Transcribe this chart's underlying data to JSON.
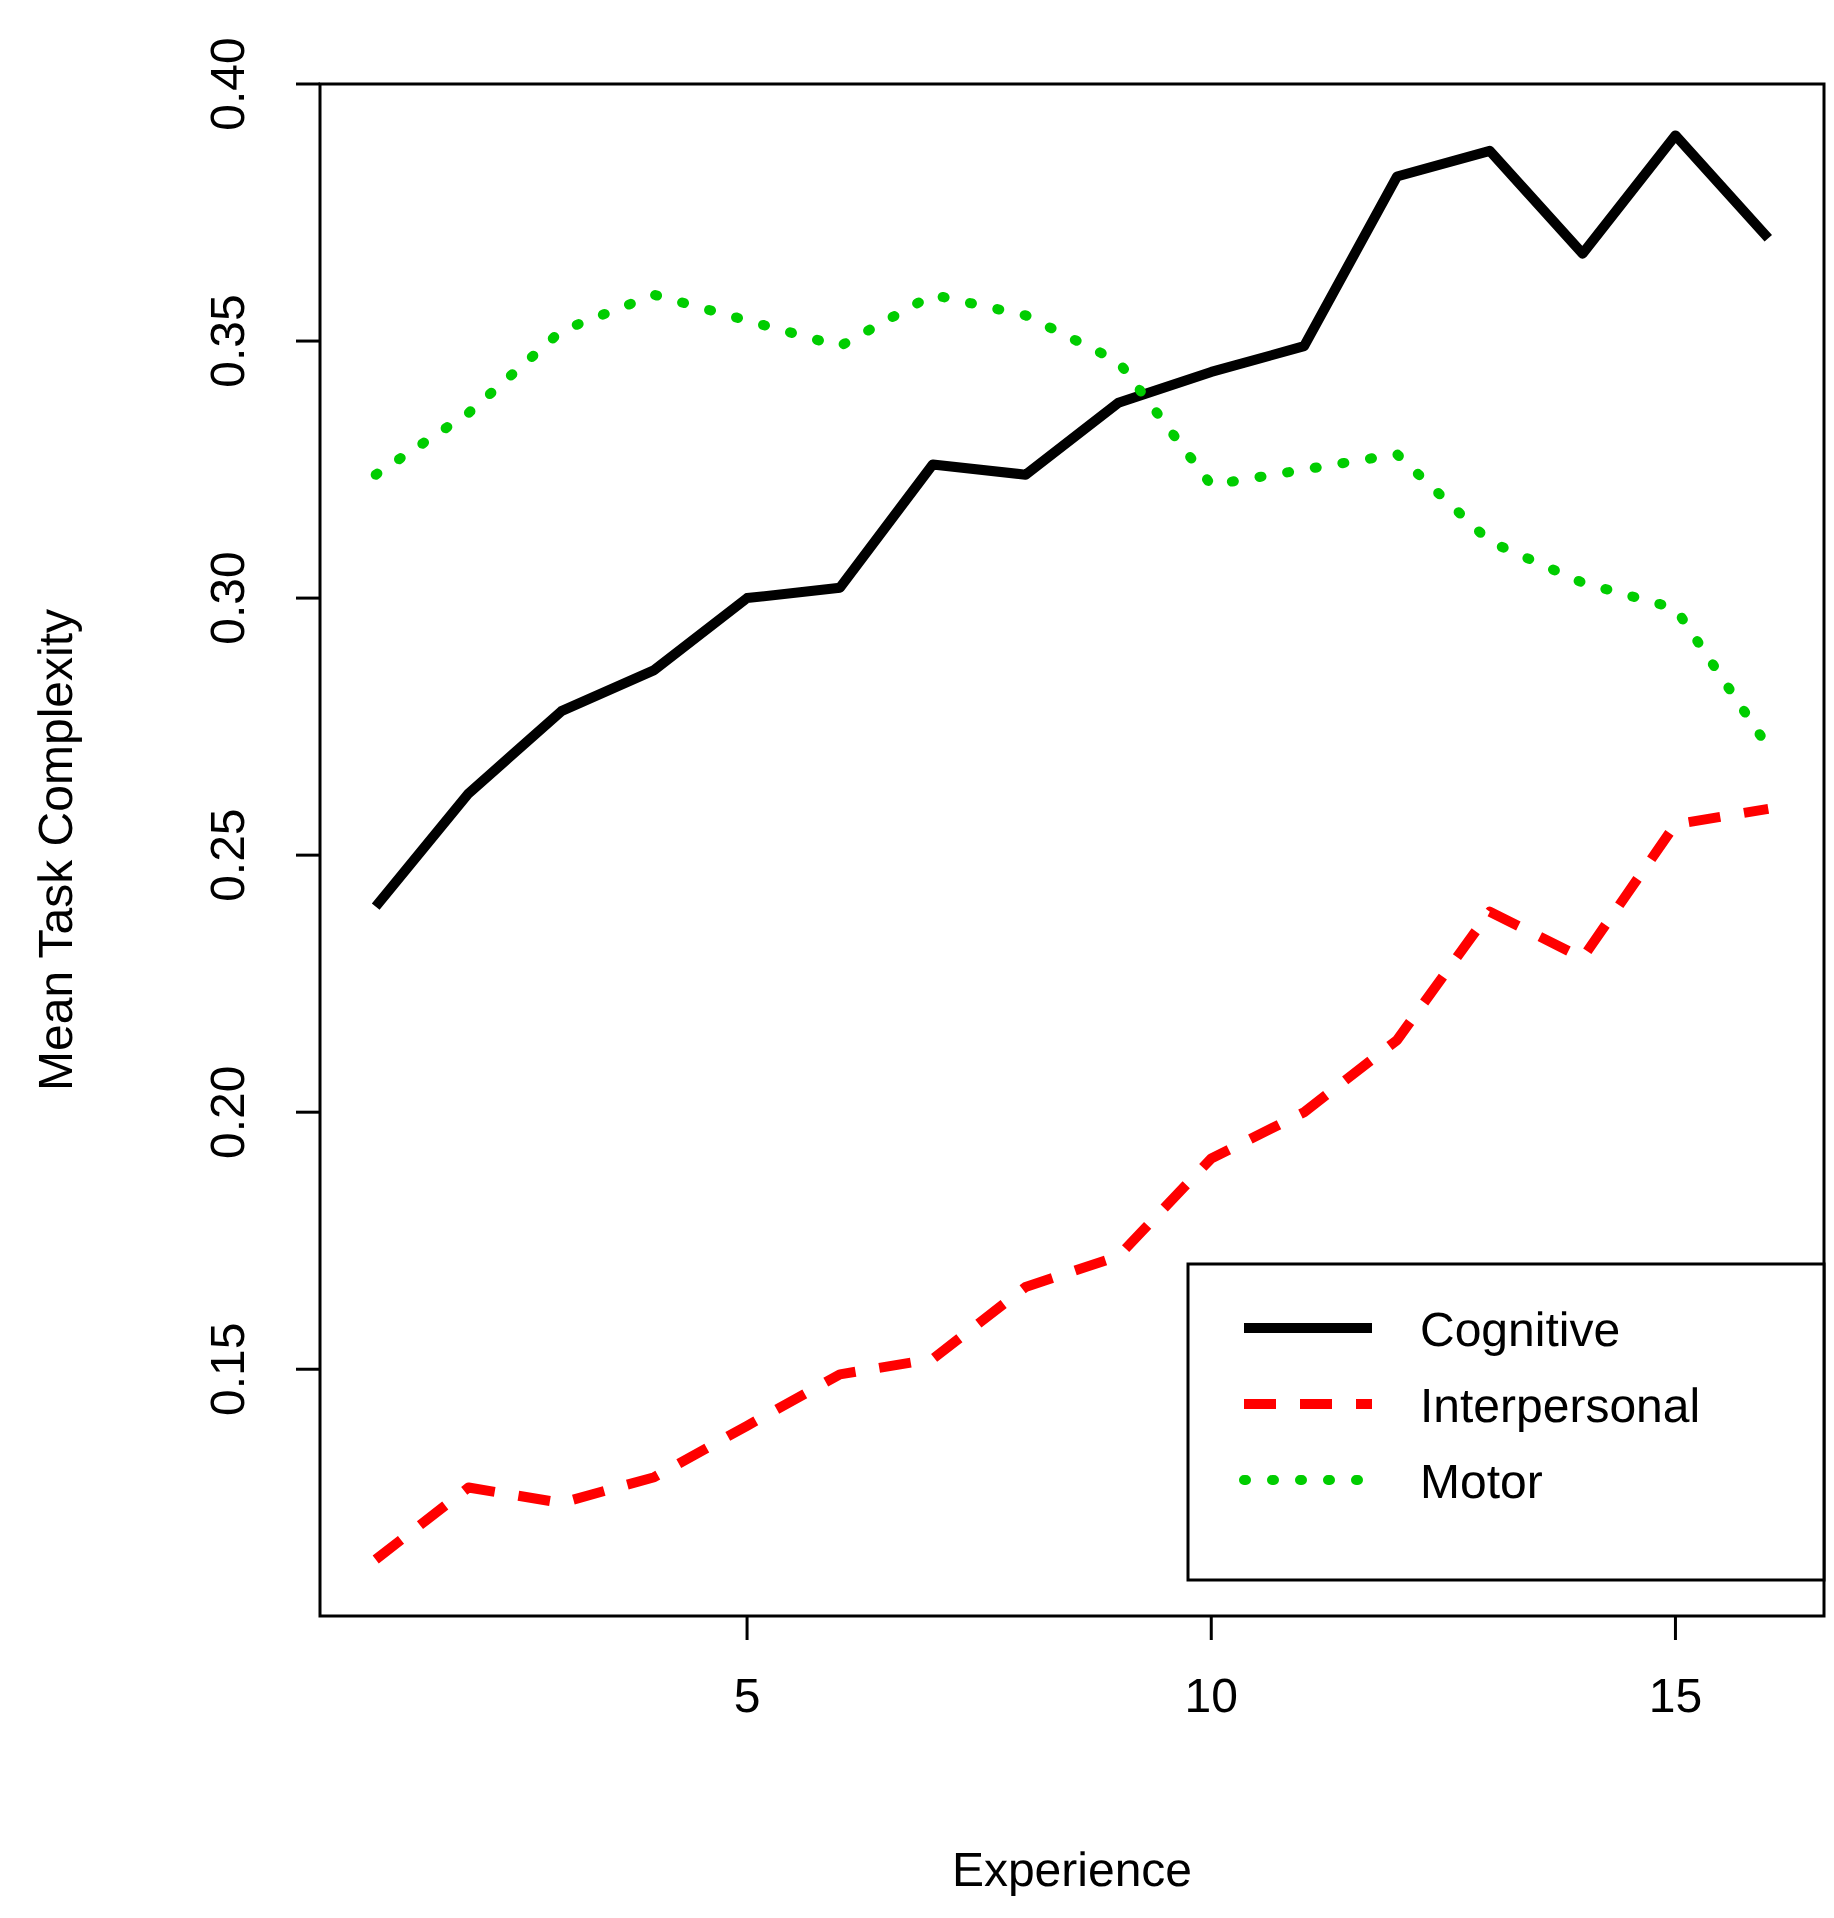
{
  "chart_data": {
    "type": "line",
    "xlabel": "Experience",
    "ylabel": "Mean Task Complexity",
    "x": [
      1,
      2,
      3,
      4,
      5,
      6,
      7,
      8,
      9,
      10,
      11,
      12,
      13,
      14,
      15,
      16
    ],
    "xlim": [
      0.4,
      16.6
    ],
    "xticks": [
      5,
      10,
      15
    ],
    "ylim": [
      0.102,
      0.4
    ],
    "yticks": [
      0.15,
      {
        "value": 0.2,
        "label": "0.20"
      },
      0.25,
      {
        "value": 0.3,
        "label": "0.30"
      },
      0.35,
      {
        "value": 0.4,
        "label": "0.40"
      }
    ],
    "grid": false,
    "legend": "bottom right",
    "marker": "none",
    "series": [
      {
        "name": "Cognitive",
        "color": "#000000",
        "line_style": "solid",
        "values": [
          0.24,
          0.262,
          0.278,
          0.286,
          0.3,
          0.302,
          0.326,
          0.324,
          0.338,
          0.344,
          0.349,
          0.382,
          0.387,
          0.367,
          0.39,
          0.37
        ]
      },
      {
        "name": "Interpersonal",
        "color": "#ff0000",
        "line_style": "dashed",
        "values": [
          0.113,
          0.127,
          0.124,
          0.129,
          0.139,
          0.149,
          0.152,
          0.166,
          0.172,
          0.191,
          0.2,
          0.214,
          0.239,
          0.23,
          0.256,
          0.259
        ]
      },
      {
        "name": "Motor",
        "color": "#00cd00",
        "line_style": "dotted",
        "values": [
          0.324,
          0.336,
          0.352,
          0.359,
          0.354,
          0.349,
          0.359,
          0.355,
          0.346,
          0.322,
          0.325,
          0.328,
          0.311,
          0.303,
          0.298,
          0.271
        ]
      }
    ]
  }
}
